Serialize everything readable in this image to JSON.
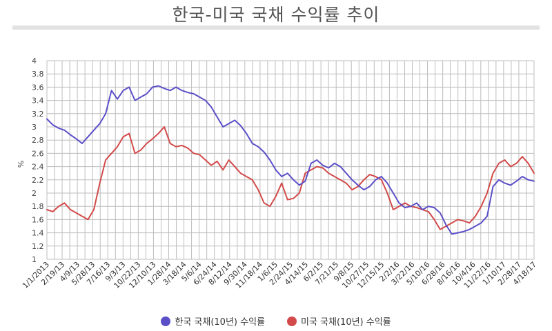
{
  "title": "한국-미국 국채 수익률 추이",
  "chart_data": {
    "type": "line",
    "ylabel": "%",
    "xlabel": "",
    "ylim": [
      1,
      4
    ],
    "yticks": [
      "1",
      "1.2",
      "1.4",
      "1.6",
      "1.8",
      "2",
      "2.2",
      "2.4",
      "2.6",
      "2.8",
      "3",
      "3.2",
      "3.4",
      "3.6",
      "3.8",
      "4"
    ],
    "x_tick_labels": [
      "1/1/2013",
      "2/19/13",
      "4/9/13",
      "5/28/13",
      "7/16/13",
      "9/3/13",
      "10/22/13",
      "12/10/13",
      "1/28/14",
      "3/18/14",
      "5/6/14",
      "6/24/14",
      "8/12/14",
      "9/30/14",
      "11/18/14",
      "1/6/15",
      "2/24/15",
      "4/14/15",
      "6/2/15",
      "7/21/15",
      "9/8/15",
      "10/27/15",
      "12/15/15",
      "2/2/16",
      "3/22/16",
      "5/10/16",
      "6/28/16",
      "8/16/16",
      "10/4/16",
      "11/22/16",
      "1/10/17",
      "2/28/17",
      "4/18/17"
    ],
    "grid": true,
    "legend_position": "bottom",
    "series": [
      {
        "name": "한국 국채(10년) 수익률",
        "color": "#5b4fc8",
        "values": [
          3.12,
          3.03,
          2.98,
          2.95,
          2.88,
          2.82,
          2.75,
          2.85,
          2.95,
          3.05,
          3.2,
          3.55,
          3.42,
          3.55,
          3.6,
          3.4,
          3.45,
          3.5,
          3.6,
          3.62,
          3.58,
          3.55,
          3.6,
          3.55,
          3.52,
          3.5,
          3.45,
          3.4,
          3.3,
          3.15,
          3.0,
          3.05,
          3.1,
          3.02,
          2.9,
          2.75,
          2.7,
          2.62,
          2.5,
          2.35,
          2.25,
          2.3,
          2.2,
          2.12,
          2.18,
          2.45,
          2.5,
          2.42,
          2.38,
          2.45,
          2.4,
          2.3,
          2.2,
          2.12,
          2.05,
          2.1,
          2.2,
          2.25,
          2.15,
          2.0,
          1.85,
          1.78,
          1.8,
          1.85,
          1.75,
          1.8,
          1.78,
          1.7,
          1.52,
          1.38,
          1.4,
          1.42,
          1.45,
          1.5,
          1.55,
          1.65,
          2.1,
          2.2,
          2.15,
          2.12,
          2.18,
          2.25,
          2.2,
          2.18
        ]
      },
      {
        "name": "미국 국채(10년) 수익률",
        "color": "#d34a4a",
        "values": [
          1.75,
          1.72,
          1.8,
          1.85,
          1.75,
          1.7,
          1.65,
          1.6,
          1.75,
          2.15,
          2.5,
          2.6,
          2.7,
          2.85,
          2.9,
          2.6,
          2.65,
          2.75,
          2.82,
          2.9,
          3.0,
          2.75,
          2.7,
          2.72,
          2.68,
          2.6,
          2.58,
          2.5,
          2.42,
          2.48,
          2.35,
          2.5,
          2.4,
          2.3,
          2.25,
          2.2,
          2.05,
          1.85,
          1.8,
          1.95,
          2.15,
          1.9,
          1.92,
          2.0,
          2.3,
          2.35,
          2.4,
          2.38,
          2.3,
          2.25,
          2.2,
          2.15,
          2.05,
          2.1,
          2.2,
          2.28,
          2.25,
          2.2,
          2.0,
          1.75,
          1.8,
          1.85,
          1.8,
          1.78,
          1.75,
          1.72,
          1.6,
          1.45,
          1.5,
          1.55,
          1.6,
          1.58,
          1.55,
          1.65,
          1.8,
          2.0,
          2.3,
          2.45,
          2.5,
          2.4,
          2.45,
          2.55,
          2.45,
          2.3
        ]
      }
    ]
  }
}
